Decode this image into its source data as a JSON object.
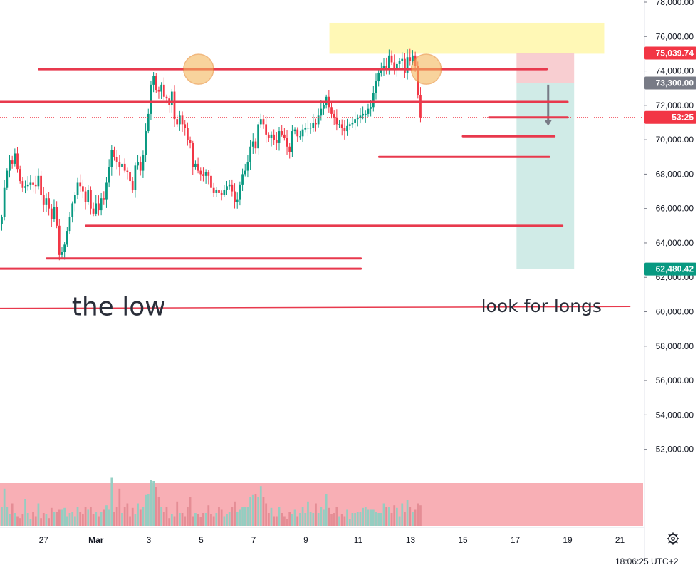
{
  "chart_data": {
    "type": "candlestick",
    "ylim": [
      49500,
      78000
    ],
    "x_domain": [
      -1.8,
      21.2
    ],
    "y_ticks": [
      {
        "value": 52000,
        "label": "52,000.00"
      },
      {
        "value": 54000,
        "label": "54,000.00"
      },
      {
        "value": 56000,
        "label": "56,000.00"
      },
      {
        "value": 58000,
        "label": "58,000.00"
      },
      {
        "value": 60000,
        "label": "60,000.00"
      },
      {
        "value": 62000,
        "label": "62,000.00"
      },
      {
        "value": 64000,
        "label": "64,000.00"
      },
      {
        "value": 66000,
        "label": "66,000.00"
      },
      {
        "value": 68000,
        "label": "68,000.00"
      },
      {
        "value": 70000,
        "label": "70,000.00"
      },
      {
        "value": 72000,
        "label": "72,000.00"
      },
      {
        "value": 74000,
        "label": "74,000.00"
      },
      {
        "value": 76000,
        "label": "76,000.00"
      },
      {
        "value": 78000,
        "label": "78,000.00"
      }
    ],
    "x_ticks": [
      {
        "t": -0.02,
        "label": "27",
        "bold": false
      },
      {
        "t": 1.98,
        "label": "Mar",
        "bold": true
      },
      {
        "t": 4.0,
        "label": "3",
        "bold": false
      },
      {
        "t": 6.0,
        "label": "5",
        "bold": false
      },
      {
        "t": 8.0,
        "label": "7",
        "bold": false
      },
      {
        "t": 10.0,
        "label": "9",
        "bold": false
      },
      {
        "t": 12.0,
        "label": "11",
        "bold": false
      },
      {
        "t": 14.0,
        "label": "13",
        "bold": false
      },
      {
        "t": 16.0,
        "label": "15",
        "bold": false
      },
      {
        "t": 18.0,
        "label": "17",
        "bold": false
      },
      {
        "t": 20.0,
        "label": "19",
        "bold": false
      },
      {
        "t": 22.0,
        "label": "21",
        "bold": false
      }
    ],
    "candles_start_t": -1.62,
    "candles_step": 0.1,
    "closes": [
      65500,
      67200,
      68200,
      68800,
      68600,
      69200,
      68300,
      67600,
      67200,
      67300,
      67400,
      67500,
      67400,
      67300,
      67900,
      66800,
      66200,
      66600,
      66000,
      65400,
      66100,
      65000,
      63300,
      63500,
      63900,
      64700,
      65500,
      66300,
      66800,
      67500,
      67300,
      67000,
      66400,
      67100,
      66000,
      65700,
      66300,
      65900,
      66600,
      66500,
      67500,
      68400,
      69400,
      69000,
      68700,
      68400,
      68600,
      68200,
      68100,
      67600,
      67100,
      68500,
      68700,
      68200,
      69100,
      70500,
      71500,
      73200,
      73700,
      72900,
      72800,
      73200,
      72500,
      72400,
      72000,
      72800,
      71200,
      70900,
      71400,
      70900,
      70700,
      70000,
      69800,
      68400,
      68600,
      68200,
      68000,
      67900,
      68100,
      67900,
      67200,
      66900,
      67100,
      66900,
      66800,
      67100,
      67300,
      67400,
      67000,
      66400,
      66500,
      67400,
      68000,
      68200,
      68700,
      69600,
      69900,
      69500,
      70900,
      71200,
      70900,
      70300,
      70100,
      70300,
      70000,
      69800,
      70500,
      70300,
      70100,
      69600,
      69300,
      70500,
      70600,
      70200,
      70200,
      70600,
      70700,
      70700,
      70700,
      71000,
      70900,
      71400,
      71800,
      72000,
      72500,
      71900,
      71500,
      71300,
      70900,
      70900,
      70700,
      70500,
      70800,
      70900,
      71000,
      71200,
      71300,
      71400,
      71500,
      71500,
      71800,
      71900,
      72700,
      73400,
      73900,
      74100,
      74300,
      74100,
      74900,
      74500,
      74100,
      74400,
      74600,
      74700,
      73900,
      74800,
      74600,
      74900,
      74300,
      72600,
      71300
    ],
    "volume_ylim": [
      0,
      1
    ],
    "volumes": [
      0.3,
      0.58,
      0.3,
      0.18,
      0.35,
      0.2,
      0.15,
      0.12,
      0.18,
      0.42,
      0.2,
      0.1,
      0.22,
      0.15,
      0.35,
      0.12,
      0.2,
      0.18,
      0.12,
      0.28,
      0.22,
      0.22,
      0.25,
      0.25,
      0.28,
      0.15,
      0.2,
      0.22,
      0.15,
      0.3,
      0.22,
      0.18,
      0.3,
      0.25,
      0.3,
      0.18,
      0.22,
      0.15,
      0.22,
      0.25,
      0.32,
      0.25,
      0.75,
      0.22,
      0.3,
      0.58,
      0.2,
      0.3,
      0.35,
      0.15,
      0.28,
      0.18,
      0.35,
      0.25,
      0.3,
      0.48,
      0.5,
      0.72,
      0.7,
      0.6,
      0.45,
      0.3,
      0.22,
      0.3,
      0.12,
      0.18,
      0.15,
      0.38,
      0.2,
      0.2,
      0.15,
      0.3,
      0.45,
      0.15,
      0.2,
      0.18,
      0.14,
      0.2,
      0.2,
      0.32,
      0.18,
      0.15,
      0.2,
      0.3,
      0.25,
      0.15,
      0.18,
      0.22,
      0.3,
      0.38,
      0.22,
      0.25,
      0.3,
      0.3,
      0.3,
      0.45,
      0.48,
      0.5,
      0.45,
      0.62,
      0.45,
      0.35,
      0.2,
      0.28,
      0.15,
      0.15,
      0.3,
      0.2,
      0.15,
      0.1,
      0.22,
      0.18,
      0.25,
      0.15,
      0.2,
      0.3,
      0.2,
      0.38,
      0.22,
      0.2,
      0.35,
      0.2,
      0.3,
      0.25,
      0.5,
      0.28,
      0.18,
      0.2,
      0.3,
      0.15,
      0.18,
      0.15,
      0.25,
      0.1,
      0.2,
      0.2,
      0.22,
      0.22,
      0.28,
      0.3,
      0.25,
      0.25,
      0.25,
      0.22,
      0.2,
      0.2,
      0.35,
      0.3,
      0.3,
      0.2,
      0.32,
      0.28,
      0.15,
      0.35,
      0.22,
      0.4,
      0.3,
      0.22,
      0.25,
      0.35,
      0.32
    ],
    "up_color": "#089981",
    "down_color": "#f23645",
    "levels": [
      {
        "price": 74100,
        "t1": -0.2,
        "t2": 19.2
      },
      {
        "price": 72200,
        "t1": -2.0,
        "t2": 20.0
      },
      {
        "price": 71300,
        "t1": 17.0,
        "t2": 20.0
      },
      {
        "price": 70200,
        "t1": 16.0,
        "t2": 19.5
      },
      {
        "price": 69000,
        "t1": 12.8,
        "t2": 19.3
      },
      {
        "price": 65000,
        "t1": 1.6,
        "t2": 19.8
      },
      {
        "price": 63100,
        "t1": 0.1,
        "t2": 12.1
      },
      {
        "price": 62500,
        "t1": -2.0,
        "t2": 12.1
      }
    ],
    "thin_line": {
      "p1": 60200,
      "p2": 60300,
      "t1": -2.0,
      "t2": 22.4
    },
    "highlight_zone": {
      "p1": 75000,
      "p2": 76800,
      "t1": 10.9,
      "t2": 21.4
    },
    "circles": [
      {
        "t": 5.9,
        "price": 74100
      },
      {
        "t": 14.6,
        "price": 74100
      }
    ],
    "short_position": {
      "t1": 18.05,
      "t2": 20.25,
      "entry": 73300,
      "stop": 75039.74,
      "target": 62480.42,
      "arrow_from": 73200,
      "arrow_to": 70800
    },
    "current_price": 71300,
    "price_tags": [
      {
        "value": 75039.74,
        "text": "75,039.74",
        "color": "#f23645"
      },
      {
        "value": 73300,
        "text": "73,300.00",
        "color": "#787b86"
      },
      {
        "value": 71300,
        "text": "53:25",
        "color": "#f23645"
      },
      {
        "value": 62480.42,
        "text": "62,480.42",
        "color": "#089981"
      }
    ],
    "annotations": [
      {
        "text": "the low",
        "t": 2.85,
        "price": 60200,
        "size": 36
      },
      {
        "text": "look for longs",
        "t": 19.0,
        "price": 60400,
        "size": 25
      }
    ]
  },
  "clock_text": "18:06:25 UTC+2",
  "settings_icon": "gear-icon",
  "colors": {
    "level_line": "#e8394d",
    "zone_fill": "#fff59d",
    "circle_fill": "#f5b65c",
    "circle_stroke": "#e8892a",
    "stop_fill": "#f7c5c9",
    "target_fill": "#c8e8e3",
    "volume_band": "#f7a6ad",
    "dotted_line": "#f23645"
  }
}
